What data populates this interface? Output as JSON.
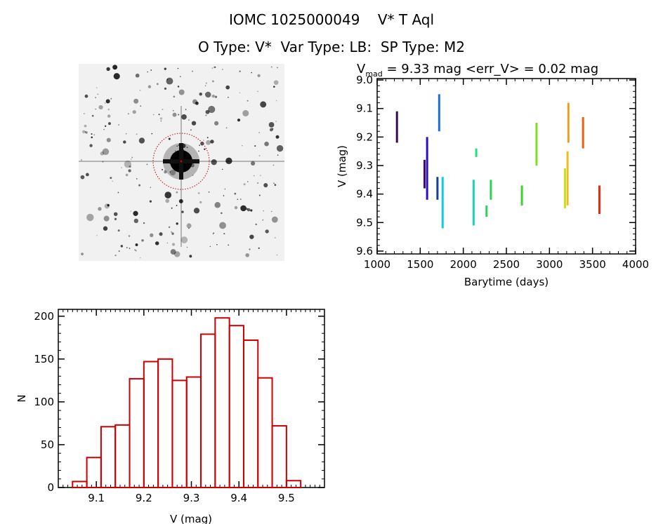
{
  "header": {
    "title": "IOMC 1025000049    V* T Aql",
    "subtitle": "O Type: V*  Var Type: LB:  SP Type: M2"
  },
  "image_panel": {
    "icon": "sky-image-thumbnail"
  },
  "chart_data": [
    {
      "type": "scatter",
      "title_prefix": "V",
      "title_sub": "mad",
      "title_rest": " = 9.33 mag <err_V> = 0.02 mag",
      "xlabel": "Barytime (days)",
      "ylabel": "V (mag)",
      "xlim": [
        1000,
        4000
      ],
      "ylim": [
        9.61,
        8.995
      ],
      "y_inverted": true,
      "xticks": [
        1000,
        1500,
        2000,
        2500,
        3000,
        3500,
        4000
      ],
      "yticks": [
        "9.0",
        "9.1",
        "9.2",
        "9.3",
        "9.4",
        "9.5",
        "9.6"
      ],
      "segments": [
        {
          "x": 1230,
          "v_min": 9.11,
          "v_max": 9.22,
          "color": "#3a0a5a"
        },
        {
          "x": 1550,
          "v_min": 9.28,
          "v_max": 9.38,
          "color": "#3c0a80"
        },
        {
          "x": 1580,
          "v_min": 9.2,
          "v_max": 9.42,
          "color": "#2a10c0"
        },
        {
          "x": 1700,
          "v_min": 9.34,
          "v_max": 9.42,
          "color": "#1a3aa0"
        },
        {
          "x": 1720,
          "v_min": 9.05,
          "v_max": 9.18,
          "color": "#1e6ee0"
        },
        {
          "x": 1760,
          "v_min": 9.34,
          "v_max": 9.52,
          "color": "#10c8e8"
        },
        {
          "x": 2120,
          "v_min": 9.35,
          "v_max": 9.51,
          "color": "#18d8b0"
        },
        {
          "x": 2150,
          "v_min": 9.24,
          "v_max": 9.27,
          "color": "#20e080"
        },
        {
          "x": 2270,
          "v_min": 9.44,
          "v_max": 9.48,
          "color": "#30d060"
        },
        {
          "x": 2320,
          "v_min": 9.35,
          "v_max": 9.42,
          "color": "#30d050"
        },
        {
          "x": 2680,
          "v_min": 9.37,
          "v_max": 9.44,
          "color": "#40d030"
        },
        {
          "x": 2850,
          "v_min": 9.15,
          "v_max": 9.3,
          "color": "#80e020"
        },
        {
          "x": 3180,
          "v_min": 9.31,
          "v_max": 9.45,
          "color": "#c8e020"
        },
        {
          "x": 3210,
          "v_min": 9.25,
          "v_max": 9.44,
          "color": "#e8c020"
        },
        {
          "x": 3220,
          "v_min": 9.08,
          "v_max": 9.22,
          "color": "#e8a020"
        },
        {
          "x": 3390,
          "v_min": 9.13,
          "v_max": 9.24,
          "color": "#f06010"
        },
        {
          "x": 3580,
          "v_min": 9.37,
          "v_max": 9.47,
          "color": "#e03010"
        }
      ]
    },
    {
      "type": "bar",
      "xlabel": "V (mag)",
      "ylabel": "N",
      "xlim": [
        9.02,
        9.58
      ],
      "ylim": [
        0,
        208
      ],
      "xticks": [
        "9.1",
        "9.2",
        "9.3",
        "9.4",
        "9.5"
      ],
      "yticks": [
        "0",
        "50",
        "100",
        "150",
        "200"
      ],
      "bin_start": 9.05,
      "bin_width": 0.03,
      "values": [
        7,
        35,
        71,
        73,
        127,
        147,
        150,
        125,
        129,
        179,
        198,
        189,
        172,
        128,
        72,
        8
      ],
      "color": "#cc0000"
    }
  ]
}
